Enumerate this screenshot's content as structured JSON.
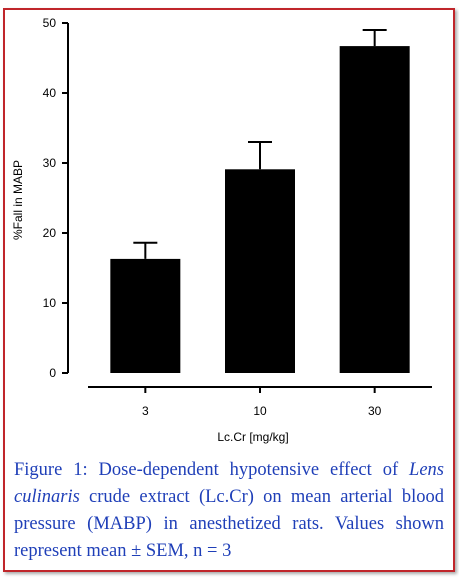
{
  "chart_data": {
    "type": "bar",
    "categories": [
      "3",
      "10",
      "30"
    ],
    "values": [
      16.3,
      29.1,
      46.7
    ],
    "errors": [
      2.3,
      3.9,
      2.3
    ],
    "color": "#000000",
    "ylim": [
      0,
      50
    ],
    "yticks": [
      0,
      10,
      20,
      30,
      40,
      50
    ],
    "ylabel": "%Fall in MABP",
    "xlabel": "Lc.Cr [mg/kg]"
  },
  "caption": {
    "lead": "Figure 1: Dose-dependent hypotensive effect of ",
    "italic": "Lens culinaris",
    "rest": " crude extract (Lc.Cr) on mean arterial blood pressure (MABP) in anesthetized rats. Values shown represent mean ± SEM, n = 3"
  }
}
